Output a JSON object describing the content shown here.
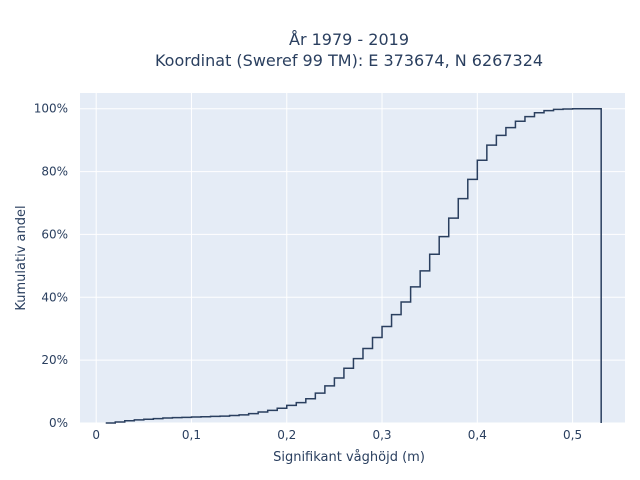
{
  "chart_data": {
    "type": "line",
    "line_shape": "step",
    "title_line1": "År 1979 - 2019",
    "title_line2": "Koordinat (Sweref 99 TM): E 373674, N 6267324",
    "xlabel": "Signifikant våghöjd (m)",
    "ylabel": "Kumulativ andel",
    "xlim": [
      -0.017,
      0.555
    ],
    "ylim": [
      0,
      1.05
    ],
    "x_ticks": [
      0,
      0.1,
      0.2,
      0.3,
      0.4,
      0.5
    ],
    "x_tick_labels": [
      "0",
      "0,1",
      "0,2",
      "0,3",
      "0,4",
      "0,5"
    ],
    "y_ticks": [
      0,
      0.2,
      0.4,
      0.6,
      0.8,
      1.0
    ],
    "y_tick_labels": [
      "0%",
      "20%",
      "40%",
      "60%",
      "80%",
      "100%"
    ],
    "grid": true,
    "colors": {
      "plot_bg": "#e5ecf6",
      "grid": "#ffffff",
      "line": "#2a3f5f",
      "text": "#2a3f5f"
    },
    "series": [
      {
        "x": [
          0.01,
          0.02,
          0.03,
          0.04,
          0.05,
          0.06,
          0.07,
          0.08,
          0.09,
          0.1,
          0.11,
          0.12,
          0.13,
          0.14,
          0.15,
          0.16,
          0.17,
          0.18,
          0.19,
          0.2,
          0.21,
          0.22,
          0.23,
          0.24,
          0.25,
          0.26,
          0.27,
          0.28,
          0.29,
          0.3,
          0.31,
          0.32,
          0.33,
          0.34,
          0.35,
          0.36,
          0.37,
          0.38,
          0.39,
          0.4,
          0.41,
          0.42,
          0.43,
          0.44,
          0.45,
          0.46,
          0.47,
          0.48,
          0.49,
          0.5,
          0.51,
          0.52,
          0.53,
          0.53
        ],
        "y": [
          0.0,
          0.003,
          0.007,
          0.01,
          0.012,
          0.014,
          0.016,
          0.017,
          0.018,
          0.019,
          0.02,
          0.021,
          0.022,
          0.024,
          0.026,
          0.03,
          0.035,
          0.04,
          0.047,
          0.056,
          0.065,
          0.077,
          0.095,
          0.118,
          0.143,
          0.174,
          0.205,
          0.237,
          0.272,
          0.307,
          0.345,
          0.385,
          0.433,
          0.484,
          0.537,
          0.593,
          0.652,
          0.714,
          0.775,
          0.836,
          0.884,
          0.915,
          0.94,
          0.96,
          0.975,
          0.987,
          0.994,
          0.998,
          0.999,
          1.0,
          1.0,
          1.0,
          1.0,
          0.0
        ]
      }
    ]
  }
}
